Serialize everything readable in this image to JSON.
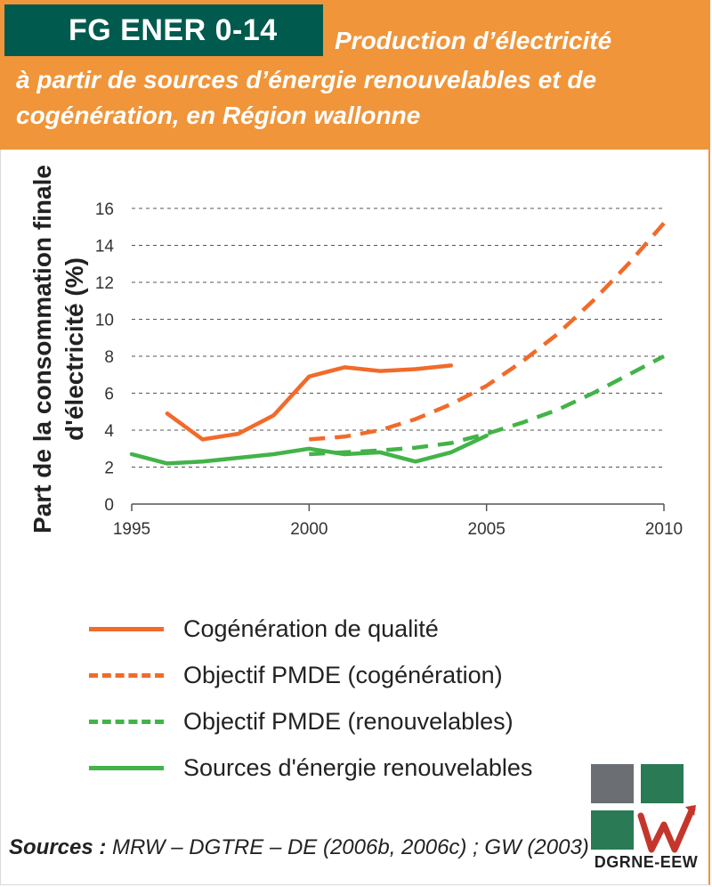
{
  "header": {
    "tag_prefix": "FG",
    "tag_code": "ENER 0-14",
    "title_line1": "Production d’électricité",
    "title_line2": "à partir de sources d’énergie renouvelables et de",
    "title_line3": "cogénération, en Région wallonne"
  },
  "colors": {
    "orange": "#f0953a",
    "dark_green": "#005a4e",
    "series_orange": "#f26a2a",
    "series_green": "#43b349"
  },
  "chart_data": {
    "type": "line",
    "ylabel": "Part de la consommation finale d'électricité (%)",
    "xlabel": "",
    "xlim": [
      1995,
      2010
    ],
    "ylim": [
      0,
      16
    ],
    "x_ticks": [
      "1995",
      "2000",
      "2005",
      "2010"
    ],
    "y_ticks": [
      "0",
      "2",
      "4",
      "6",
      "8",
      "10",
      "12",
      "14",
      "16"
    ],
    "grid": "horizontal dashed",
    "series": [
      {
        "name": "Cogénération de qualité",
        "style": "solid",
        "color": "#f26a2a",
        "x": [
          1996,
          1997,
          1998,
          1999,
          2000,
          2001,
          2002,
          2003,
          2004
        ],
        "y": [
          4.9,
          3.5,
          3.8,
          4.8,
          6.9,
          7.4,
          7.2,
          7.3,
          7.5
        ]
      },
      {
        "name": "Objectif PMDE (cogénération)",
        "style": "dashed",
        "color": "#f26a2a",
        "x": [
          2000,
          2001,
          2002,
          2003,
          2004,
          2005,
          2006,
          2007,
          2008,
          2009,
          2010
        ],
        "y": [
          3.5,
          3.65,
          4.0,
          4.6,
          5.4,
          6.4,
          7.7,
          9.2,
          11.0,
          13.0,
          15.2
        ]
      },
      {
        "name": "Objectif PMDE (renouvelables)",
        "style": "dashed",
        "color": "#43b349",
        "x": [
          2000,
          2001,
          2002,
          2003,
          2004,
          2005,
          2006,
          2007,
          2008,
          2009,
          2010
        ],
        "y": [
          2.7,
          2.8,
          2.9,
          3.05,
          3.3,
          3.8,
          4.4,
          5.1,
          6.0,
          7.0,
          8.0
        ]
      },
      {
        "name": "Sources d'énergie renouvelables",
        "style": "solid",
        "color": "#43b349",
        "x": [
          1995,
          1996,
          1997,
          1998,
          1999,
          2000,
          2001,
          2002,
          2003,
          2004,
          2005
        ],
        "y": [
          2.7,
          2.2,
          2.3,
          2.5,
          2.7,
          3.0,
          2.7,
          2.8,
          2.3,
          2.8,
          3.7
        ]
      }
    ]
  },
  "sources": {
    "label": "Sources :",
    "text": " MRW – DGTRE – DE (2006b, 2006c) ; GW (2003)"
  },
  "logo": {
    "text": "DGRNE-EEW"
  }
}
